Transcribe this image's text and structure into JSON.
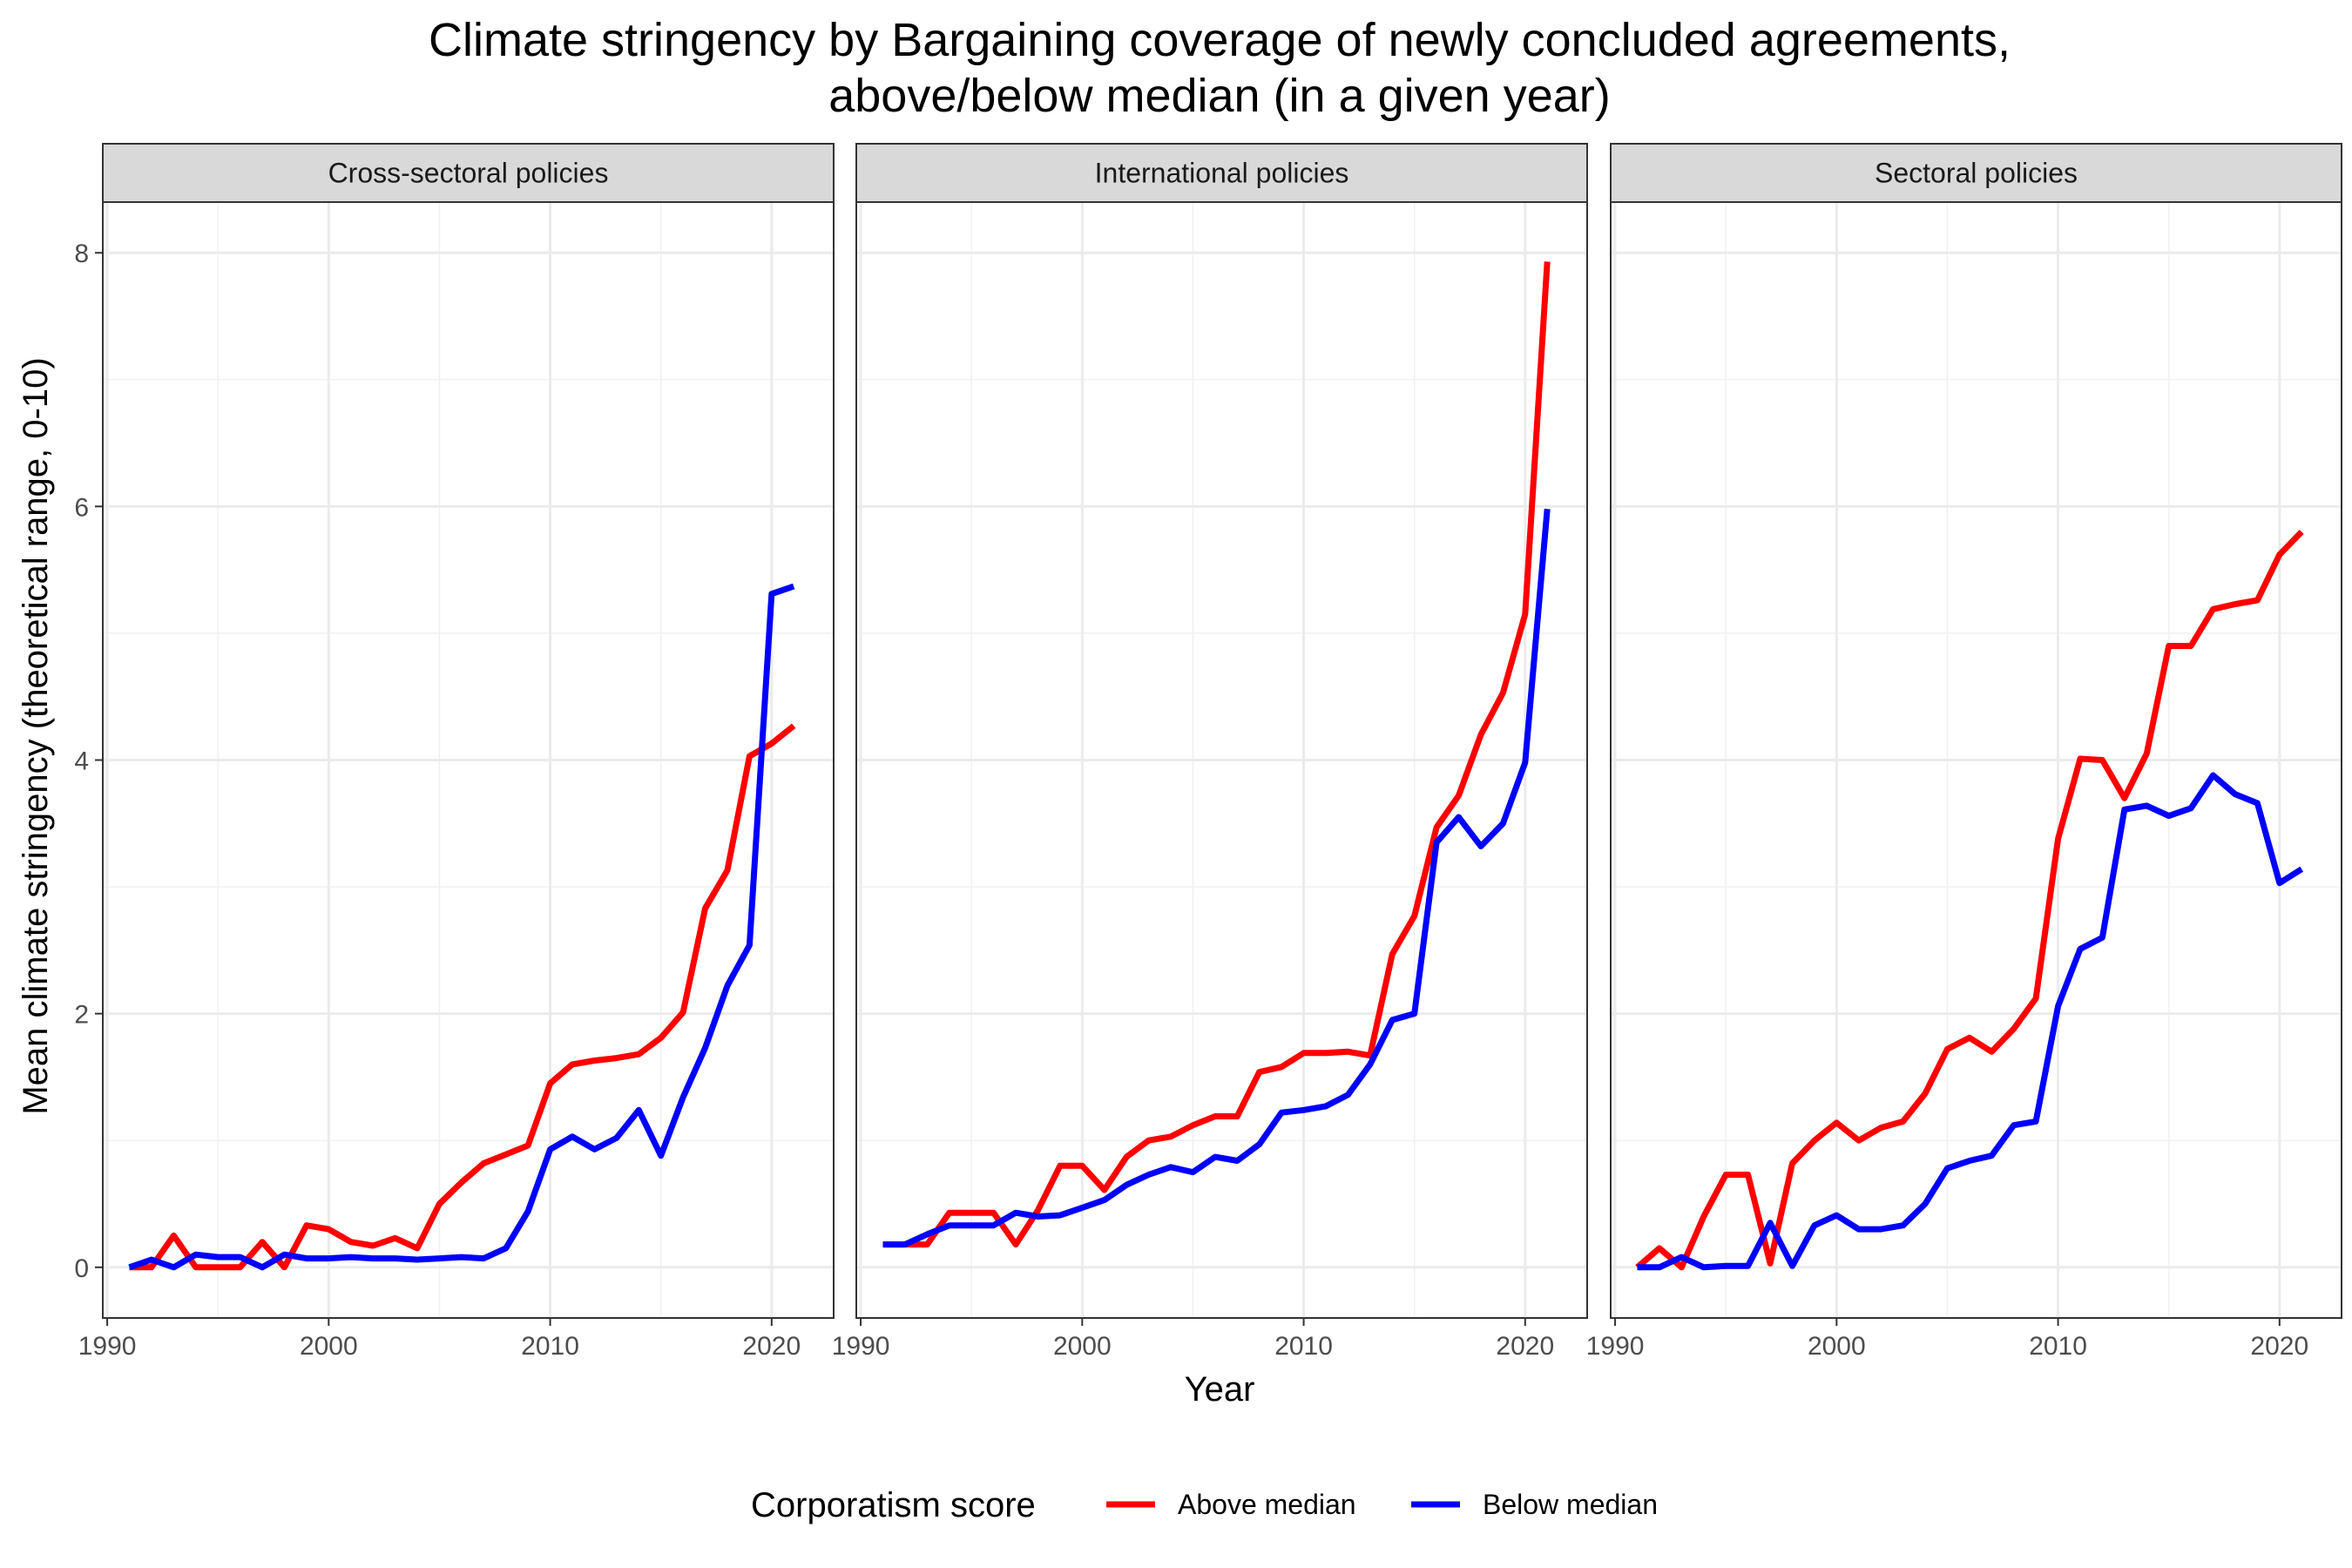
{
  "chart_data": {
    "type": "line",
    "title": "Climate stringency by Bargaining coverage of newly concluded agreements,",
    "subtitle": "above/below median (in a given year)",
    "xlabel": "Year",
    "ylabel": "Mean climate stringency (theoretical range, 0-10)",
    "xlim": [
      1989.8,
      2022.8
    ],
    "ylim": [
      -0.4,
      8.4
    ],
    "x_ticks": [
      1990,
      2000,
      2010,
      2020
    ],
    "x_tick_labels": [
      "1990",
      "2000",
      "2010",
      "2020"
    ],
    "y_ticks": [
      0,
      2,
      4,
      6,
      8
    ],
    "y_tick_labels": [
      "0",
      "2",
      "4",
      "6",
      "8"
    ],
    "grid": true,
    "legend": {
      "title": "Corporatism score",
      "placement": "bottom",
      "entries": [
        {
          "label": "Above median",
          "color": "#ff0000"
        },
        {
          "label": "Below median",
          "color": "#0000ff"
        }
      ]
    },
    "x": [
      1991,
      1992,
      1993,
      1994,
      1995,
      1996,
      1997,
      1998,
      1999,
      2000,
      2001,
      2002,
      2003,
      2004,
      2005,
      2006,
      2007,
      2008,
      2009,
      2010,
      2011,
      2012,
      2013,
      2014,
      2015,
      2016,
      2017,
      2018,
      2019,
      2020,
      2021
    ],
    "panels": [
      {
        "title": "Cross-sectoral policies",
        "series": [
          {
            "name": "Above median",
            "color": "#ff0000",
            "values": [
              0.0,
              0.0,
              0.25,
              0.0,
              0.0,
              0.0,
              0.2,
              0.0,
              0.33,
              0.3,
              0.2,
              0.17,
              0.23,
              0.15,
              0.5,
              0.67,
              0.82,
              0.89,
              0.96,
              1.45,
              1.6,
              1.63,
              1.65,
              1.68,
              1.81,
              2.01,
              2.83,
              3.13,
              4.03,
              4.13,
              4.27
            ]
          },
          {
            "name": "Below median",
            "color": "#0000ff",
            "values": [
              0.0,
              0.06,
              0.0,
              0.1,
              0.08,
              0.08,
              0.0,
              0.1,
              0.07,
              0.07,
              0.08,
              0.07,
              0.07,
              0.06,
              0.07,
              0.08,
              0.07,
              0.15,
              0.44,
              0.93,
              1.03,
              0.93,
              1.02,
              1.24,
              0.88,
              1.34,
              1.73,
              2.22,
              2.54,
              5.31,
              5.37
            ]
          }
        ]
      },
      {
        "title": "International policies",
        "series": [
          {
            "name": "Above median",
            "color": "#ff0000",
            "values": [
              0.18,
              0.18,
              0.18,
              0.43,
              0.43,
              0.43,
              0.18,
              0.45,
              0.8,
              0.8,
              0.61,
              0.87,
              1.0,
              1.03,
              1.12,
              1.19,
              1.19,
              1.54,
              1.58,
              1.69,
              1.69,
              1.7,
              1.67,
              2.47,
              2.77,
              3.47,
              3.72,
              4.2,
              4.53,
              5.15,
              7.93
            ]
          },
          {
            "name": "Below median",
            "color": "#0000ff",
            "values": [
              0.18,
              0.18,
              0.26,
              0.33,
              0.33,
              0.33,
              0.43,
              0.4,
              0.41,
              0.47,
              0.53,
              0.65,
              0.73,
              0.79,
              0.75,
              0.87,
              0.84,
              0.97,
              1.22,
              1.24,
              1.27,
              1.36,
              1.6,
              1.95,
              2.0,
              3.35,
              3.55,
              3.32,
              3.5,
              3.98,
              5.98
            ]
          }
        ]
      },
      {
        "title": "Sectoral policies",
        "series": [
          {
            "name": "Above median",
            "color": "#ff0000",
            "values": [
              0.0,
              0.15,
              0.0,
              0.4,
              0.73,
              0.73,
              0.03,
              0.82,
              1.0,
              1.14,
              1.0,
              1.1,
              1.15,
              1.37,
              1.72,
              1.81,
              1.7,
              1.88,
              2.12,
              3.38,
              4.01,
              4.0,
              3.7,
              4.05,
              4.9,
              4.9,
              5.19,
              5.23,
              5.26,
              5.62,
              5.8
            ]
          },
          {
            "name": "Below median",
            "color": "#0000ff",
            "values": [
              0.0,
              0.0,
              0.08,
              0.0,
              0.01,
              0.01,
              0.35,
              0.01,
              0.33,
              0.41,
              0.3,
              0.3,
              0.33,
              0.5,
              0.78,
              0.84,
              0.88,
              1.12,
              1.15,
              2.06,
              2.51,
              2.6,
              3.61,
              3.64,
              3.56,
              3.62,
              3.88,
              3.73,
              3.66,
              3.03,
              3.14
            ]
          }
        ]
      }
    ]
  }
}
